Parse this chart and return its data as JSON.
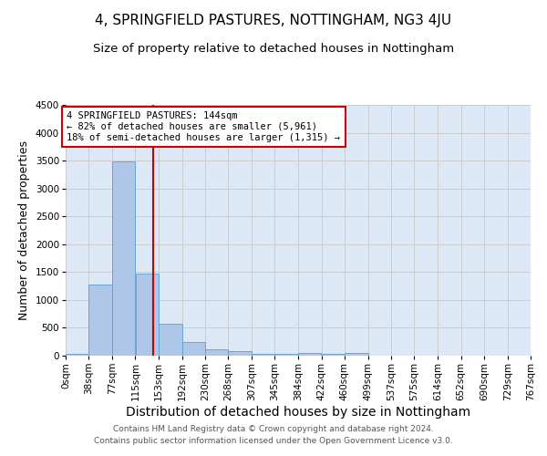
{
  "title": "4, SPRINGFIELD PASTURES, NOTTINGHAM, NG3 4JU",
  "subtitle": "Size of property relative to detached houses in Nottingham",
  "xlabel": "Distribution of detached houses by size in Nottingham",
  "ylabel": "Number of detached properties",
  "bin_edges": [
    0,
    38,
    77,
    115,
    153,
    192,
    230,
    268,
    307,
    345,
    384,
    422,
    460,
    499,
    537,
    575,
    614,
    652,
    690,
    729,
    767
  ],
  "bin_labels": [
    "0sqm",
    "38sqm",
    "77sqm",
    "115sqm",
    "153sqm",
    "192sqm",
    "230sqm",
    "268sqm",
    "307sqm",
    "345sqm",
    "384sqm",
    "422sqm",
    "460sqm",
    "499sqm",
    "537sqm",
    "575sqm",
    "614sqm",
    "652sqm",
    "690sqm",
    "729sqm",
    "767sqm"
  ],
  "bar_heights": [
    30,
    1280,
    3480,
    1480,
    570,
    240,
    120,
    80,
    40,
    30,
    50,
    30,
    50,
    0,
    0,
    0,
    0,
    0,
    0,
    0
  ],
  "bar_color": "#aec6e8",
  "bar_edgecolor": "#5a9fd4",
  "property_size": 144,
  "red_line_color": "#cc0000",
  "annotation_line1": "4 SPRINGFIELD PASTURES: 144sqm",
  "annotation_line2": "← 82% of detached houses are smaller (5,961)",
  "annotation_line3": "18% of semi-detached houses are larger (1,315) →",
  "annotation_box_edgecolor": "#cc0000",
  "annotation_box_facecolor": "#ffffff",
  "ylim": [
    0,
    4500
  ],
  "yticks": [
    0,
    500,
    1000,
    1500,
    2000,
    2500,
    3000,
    3500,
    4000,
    4500
  ],
  "grid_color": "#cccccc",
  "background_color": "#dce8f5",
  "footer_line1": "Contains HM Land Registry data © Crown copyright and database right 2024.",
  "footer_line2": "Contains public sector information licensed under the Open Government Licence v3.0.",
  "title_fontsize": 11,
  "subtitle_fontsize": 9.5,
  "xlabel_fontsize": 10,
  "ylabel_fontsize": 9,
  "tick_fontsize": 7.5,
  "footer_fontsize": 6.5,
  "annotation_fontsize": 7.5
}
